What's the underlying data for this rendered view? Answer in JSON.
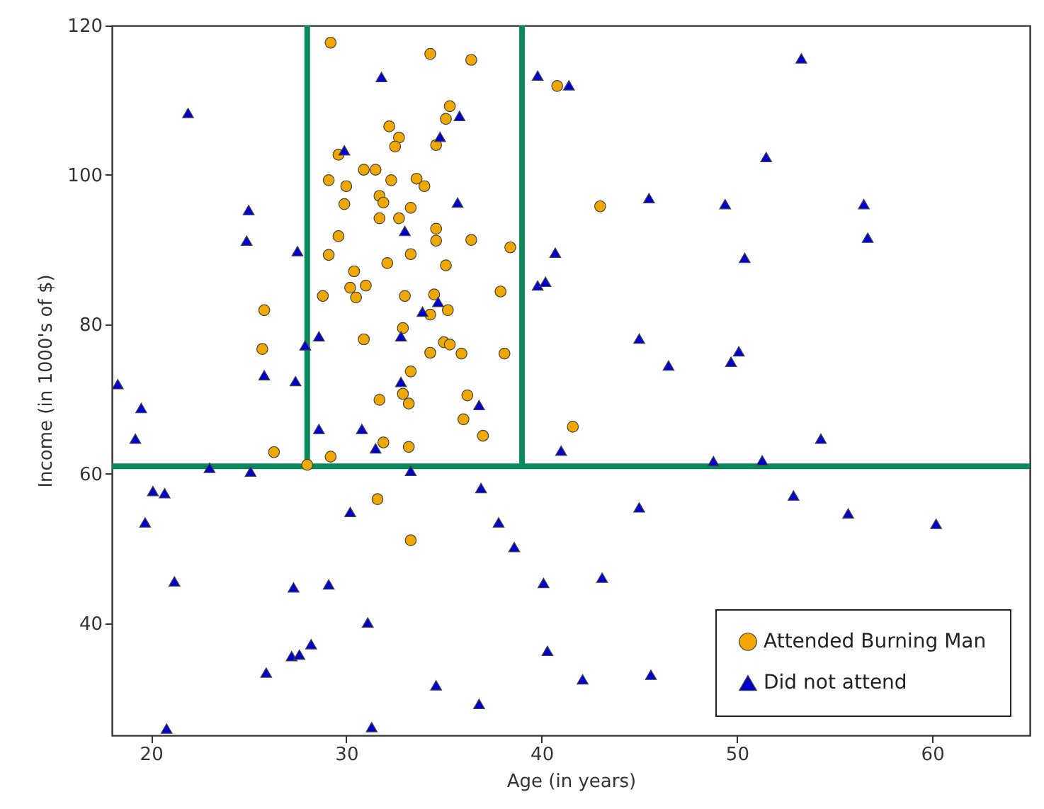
{
  "chart_data": {
    "type": "scatter",
    "xlabel": "Age (in years)",
    "ylabel": "Income (in 1000's of $)",
    "xlim": [
      18,
      65
    ],
    "ylim": [
      25,
      120
    ],
    "xticks": [
      20,
      30,
      40,
      50,
      60
    ],
    "yticks": [
      40,
      60,
      80,
      100,
      120
    ],
    "grid": false,
    "legend": "bottom right",
    "ref_lines": [
      {
        "axis": "y",
        "value": 61,
        "color": "#0a8a5a"
      },
      {
        "axis": "x",
        "value": 28,
        "color": "#0a8a5a"
      },
      {
        "axis": "x",
        "value": 39,
        "color": "#0a8a5a"
      }
    ],
    "series": [
      {
        "name": "Attended Burning Man",
        "color": "#f0a800",
        "marker": "circle",
        "x": [
          29.2,
          34.3,
          36.4,
          40.8,
          35.3,
          35.1,
          32.2,
          32.7,
          32.5,
          34.6,
          29.6,
          30.9,
          31.5,
          29.1,
          30.0,
          32.3,
          33.6,
          34.0,
          29.9,
          31.7,
          31.9,
          31.7,
          32.7,
          33.3,
          29.6,
          34.6,
          34.6,
          36.4,
          38.4,
          29.1,
          33.3,
          32.1,
          35.1,
          30.4,
          30.2,
          31.0,
          30.5,
          28.8,
          33.0,
          34.5,
          35.2,
          34.3,
          37.9,
          25.8,
          25.7,
          32.9,
          30.9,
          35.0,
          35.3,
          35.9,
          34.3,
          38.1,
          33.3,
          31.7,
          32.9,
          33.2,
          36.2,
          36.0,
          37.0,
          26.3,
          29.2,
          33.2,
          31.9,
          28.0,
          41.6,
          43.0,
          31.6,
          33.3
        ],
        "values": [
          117.7,
          116.2,
          115.4,
          111.9,
          109.2,
          107.5,
          106.5,
          105.0,
          103.8,
          104.0,
          102.7,
          100.7,
          100.7,
          99.3,
          98.5,
          99.3,
          99.5,
          98.5,
          96.1,
          97.2,
          96.3,
          94.2,
          94.2,
          95.6,
          91.8,
          92.8,
          91.2,
          91.3,
          90.3,
          89.3,
          89.4,
          88.2,
          87.9,
          87.1,
          84.9,
          85.2,
          83.6,
          83.8,
          83.8,
          84.0,
          81.9,
          81.3,
          84.4,
          81.9,
          76.7,
          79.5,
          78.0,
          77.6,
          77.3,
          76.1,
          76.2,
          76.1,
          73.7,
          69.9,
          70.7,
          69.4,
          70.5,
          67.3,
          65.1,
          62.9,
          62.3,
          63.6,
          64.2,
          61.2,
          66.3,
          95.8,
          56.6,
          51.1
        ]
      },
      {
        "name": "Did not attend",
        "color": "#0000cc",
        "marker": "triangle",
        "x": [
          31.8,
          21.9,
          35.8,
          34.8,
          29.9,
          25.0,
          35.7,
          24.9,
          27.5,
          33.0,
          34.7,
          33.9,
          28.6,
          27.9,
          32.8,
          25.8,
          27.4,
          18.3,
          19.5,
          19.2,
          28.6,
          30.8,
          32.8,
          36.8,
          31.5,
          41.0,
          23.0,
          25.1,
          33.3,
          39.8,
          41.4,
          40.7,
          39.8,
          40.2,
          53.3,
          51.5,
          45.5,
          49.4,
          56.5,
          56.7,
          50.4,
          45.0,
          46.5,
          50.1,
          49.7,
          54.3,
          48.8,
          51.3,
          45.0,
          52.9,
          55.7,
          60.2,
          40.1,
          43.1,
          40.3,
          42.1,
          45.6,
          36.9,
          30.2,
          37.8,
          38.6,
          27.3,
          29.1,
          31.1,
          27.2,
          27.6,
          28.2,
          34.6,
          36.8,
          31.3,
          20.1,
          20.7,
          19.7,
          21.2,
          25.9,
          20.8
        ],
        "values": [
          113.1,
          108.3,
          107.9,
          105.1,
          103.3,
          95.3,
          96.3,
          91.2,
          89.8,
          92.5,
          83.0,
          81.7,
          78.4,
          77.2,
          78.4,
          73.2,
          72.4,
          72.0,
          68.8,
          64.7,
          66.0,
          66.0,
          72.3,
          69.2,
          63.4,
          63.1,
          60.8,
          60.3,
          60.4,
          113.3,
          112.0,
          89.6,
          85.2,
          85.7,
          115.6,
          102.4,
          96.9,
          96.1,
          96.1,
          91.6,
          88.9,
          78.1,
          74.5,
          76.4,
          75.0,
          64.7,
          61.7,
          61.8,
          55.5,
          57.1,
          54.7,
          53.3,
          45.4,
          46.1,
          36.3,
          32.5,
          33.1,
          58.1,
          54.9,
          53.5,
          50.2,
          44.8,
          45.2,
          40.1,
          35.6,
          35.8,
          37.2,
          31.7,
          29.2,
          26.1,
          57.7,
          57.4,
          53.5,
          45.6,
          33.4,
          25.9
        ]
      }
    ]
  }
}
